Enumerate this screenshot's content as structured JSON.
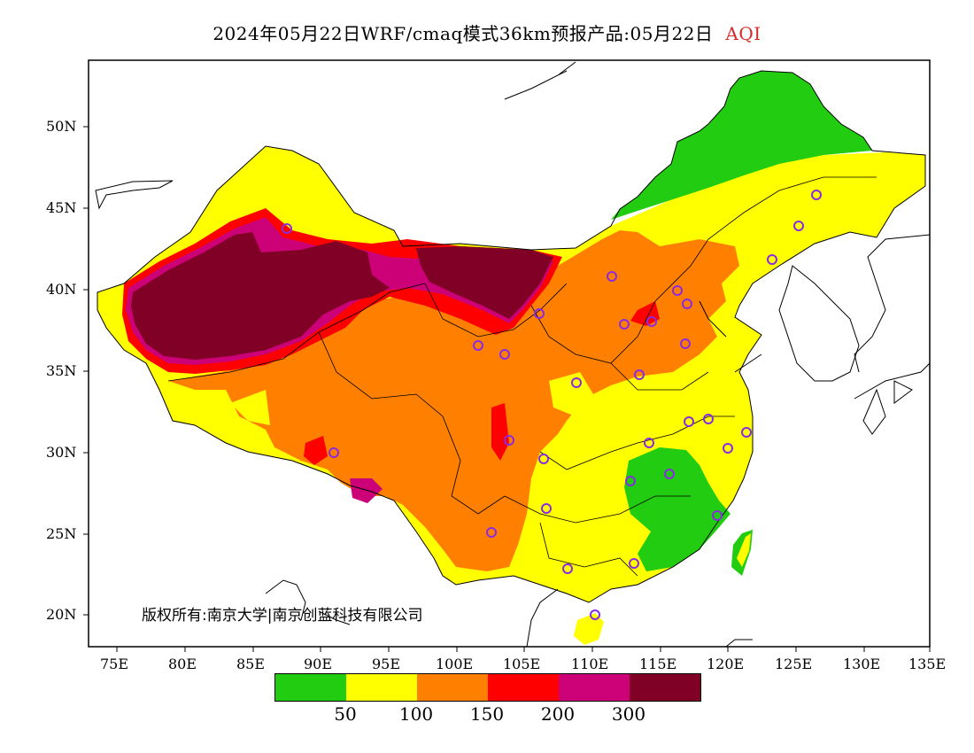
{
  "title": {
    "main": "2024年05月22日WRF/cmaq模式36km预报产品:05月22日",
    "pollutant": "AQI"
  },
  "map": {
    "projection": "lat-lon",
    "lon_ticks": [
      "75E",
      "80E",
      "85E",
      "90E",
      "95E",
      "100E",
      "105E",
      "110E",
      "115E",
      "120E",
      "125E",
      "130E",
      "135E"
    ],
    "lat_ticks": [
      "20N",
      "25N",
      "30N",
      "35N",
      "40N",
      "45N",
      "50N"
    ],
    "regions": [
      {
        "name": "northeast-clean",
        "aqi_class": "0-50",
        "color": "#22cc11"
      },
      {
        "name": "southeast-clean",
        "aqi_class": "0-50",
        "color": "#22cc11"
      },
      {
        "name": "taklamakan-dust",
        "aqi_class": ">300",
        "color": "#800026"
      },
      {
        "name": "alxa-dust",
        "aqi_class": ">300",
        "color": "#800026"
      }
    ],
    "stations_marker": "purple-circle"
  },
  "copyright": "版权所有:南京大学|南京创蓝科技有限公司",
  "legend": {
    "colors": [
      "#22cc11",
      "#ffff00",
      "#ff8000",
      "#ff0000",
      "#cc0077",
      "#800026"
    ],
    "labels": [
      "50",
      "100",
      "150",
      "200",
      "300"
    ]
  }
}
